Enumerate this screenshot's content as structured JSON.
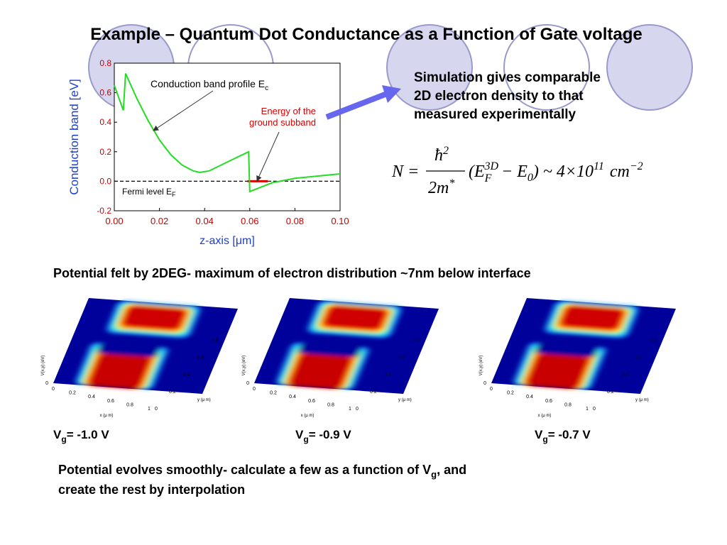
{
  "title": "Example – Quantum Dot Conductance as a Function of Gate voltage",
  "chart_data": {
    "type": "line",
    "ylabel": "Conduction band  [eV]",
    "xlabel": "z-axis  [μm]",
    "x": [
      0,
      0.004,
      0.005,
      0.01,
      0.015,
      0.02,
      0.025,
      0.03,
      0.035,
      0.038,
      0.042,
      0.05,
      0.0595,
      0.06,
      0.065,
      0.07,
      0.08,
      0.09,
      0.1
    ],
    "series": [
      {
        "name": "Conduction band profile E",
        "color": "#22dd22",
        "values": [
          0.65,
          0.48,
          0.73,
          0.56,
          0.41,
          0.28,
          0.18,
          0.11,
          0.07,
          0.06,
          0.07,
          0.13,
          0.2,
          -0.07,
          -0.04,
          -0.01,
          0.02,
          0.035,
          0.05
        ]
      }
    ],
    "xlim": [
      0,
      0.1
    ],
    "ylim": [
      -0.2,
      0.8
    ],
    "xticks": [
      {
        "value": 0,
        "label": "0.00"
      },
      {
        "value": 0.02,
        "label": "0.02"
      },
      {
        "value": 0.04,
        "label": "0.04"
      },
      {
        "value": 0.06,
        "label": "0.06"
      },
      {
        "value": 0.08,
        "label": "0.08"
      },
      {
        "value": 0.1,
        "label": "0.10"
      }
    ],
    "yticks": [
      -0.2,
      {
        "value": 0,
        "label": "0.0"
      },
      0.2,
      0.4,
      0.6,
      0.8
    ],
    "fermi_level": 0,
    "ground_subband": {
      "x": [
        0.059,
        0.068
      ],
      "value": 0,
      "color": "#dd0000"
    },
    "annotations": {
      "band_label": {
        "text": "Conduction band profile E",
        "sub": "c"
      },
      "fermi_label": {
        "text": "Fermi level E",
        "sub": "F"
      },
      "subband_label": [
        "Energy of the",
        "ground subband"
      ]
    }
  },
  "side_text": [
    "Simulation gives comparable",
    "2D electron density to that",
    "measured  experimentally"
  ],
  "formula": {
    "lhs": "N =",
    "num": "ħ",
    "num_sup": "2",
    "den": "2m",
    "den_sup": "*",
    "e1": "(E",
    "e1_sub": "F",
    "e1_sup": "3D",
    "minus": "− E",
    "e0_sub": "0",
    "rest": ") ~ 4×10",
    "exp": "11",
    "unit": "cm",
    "unit_sup": "−2"
  },
  "subheading": "Potential felt by 2DEG- maximum of electron distribution ~7nm below interface",
  "surface_plots": {
    "zlabel": "V(x,y) (eV)",
    "xlabel": "x (μ m)",
    "ylabel": "y (μ m)",
    "xticks": [
      "0",
      "0.2",
      "0.4",
      "0.6",
      "0.8",
      "1"
    ],
    "yticks": [
      "0",
      "0.2",
      "0.4",
      "0.6",
      "0.8"
    ],
    "plots": [
      {
        "caption": "V",
        "caption_sub": "g",
        "caption_rest": "= -1.0 V"
      },
      {
        "caption": "V",
        "caption_sub": "g",
        "caption_rest": "= -0.9 V"
      },
      {
        "caption": "V",
        "caption_sub": "g",
        "caption_rest": "= -0.7 V"
      }
    ]
  },
  "bottom_text": {
    "line1": "Potential evolves smoothly-  calculate a few as a function of V",
    "sub": "g",
    "line1_end": ", and",
    "line2": "create the rest by interpolation"
  }
}
